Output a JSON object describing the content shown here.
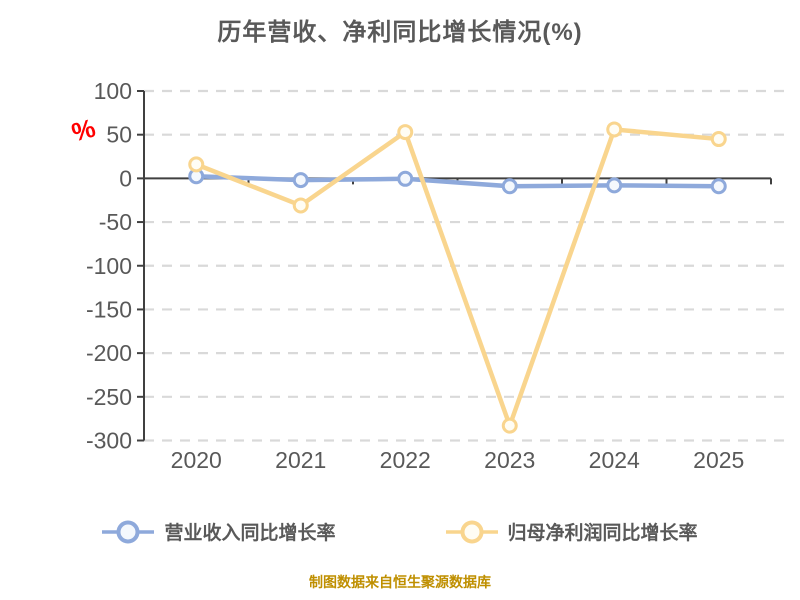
{
  "title": {
    "text": "历年营收、净利同比增长情况(%)",
    "color": "#595959"
  },
  "y_axis_unit": {
    "text": "%",
    "color": "#ff0000"
  },
  "footer": {
    "text": "制图数据来自恒生聚源数据库",
    "color": "#BF8F00"
  },
  "chart_data": {
    "type": "line",
    "title": "历年营收、净利同比增长情况(%)",
    "categories": [
      "2020",
      "2021",
      "2022",
      "2023",
      "2024",
      "2025"
    ],
    "series": [
      {
        "name": "营业收入同比增长率",
        "color": "#8EA9DB",
        "marker_fill": "#F4F8FD",
        "values": [
          2.5,
          -2,
          -0.5,
          -9,
          -8,
          -9
        ]
      },
      {
        "name": "归母净利润同比增长率",
        "color": "#F9D58E",
        "marker_fill": "#FFFDF4",
        "values": [
          16,
          -31,
          53,
          -283,
          56,
          45
        ]
      }
    ],
    "ylabel": "%",
    "ylim": [
      -300,
      100
    ],
    "ytick_step": 50,
    "yticks": [
      100,
      50,
      0,
      -50,
      -100,
      -150,
      -200,
      -250,
      -300
    ],
    "grid": "horizontal-dashed",
    "gridline_color": "#D9D9D9",
    "axis_color": "#404040",
    "tick_label_color": "#595959",
    "legend_position": "bottom"
  }
}
